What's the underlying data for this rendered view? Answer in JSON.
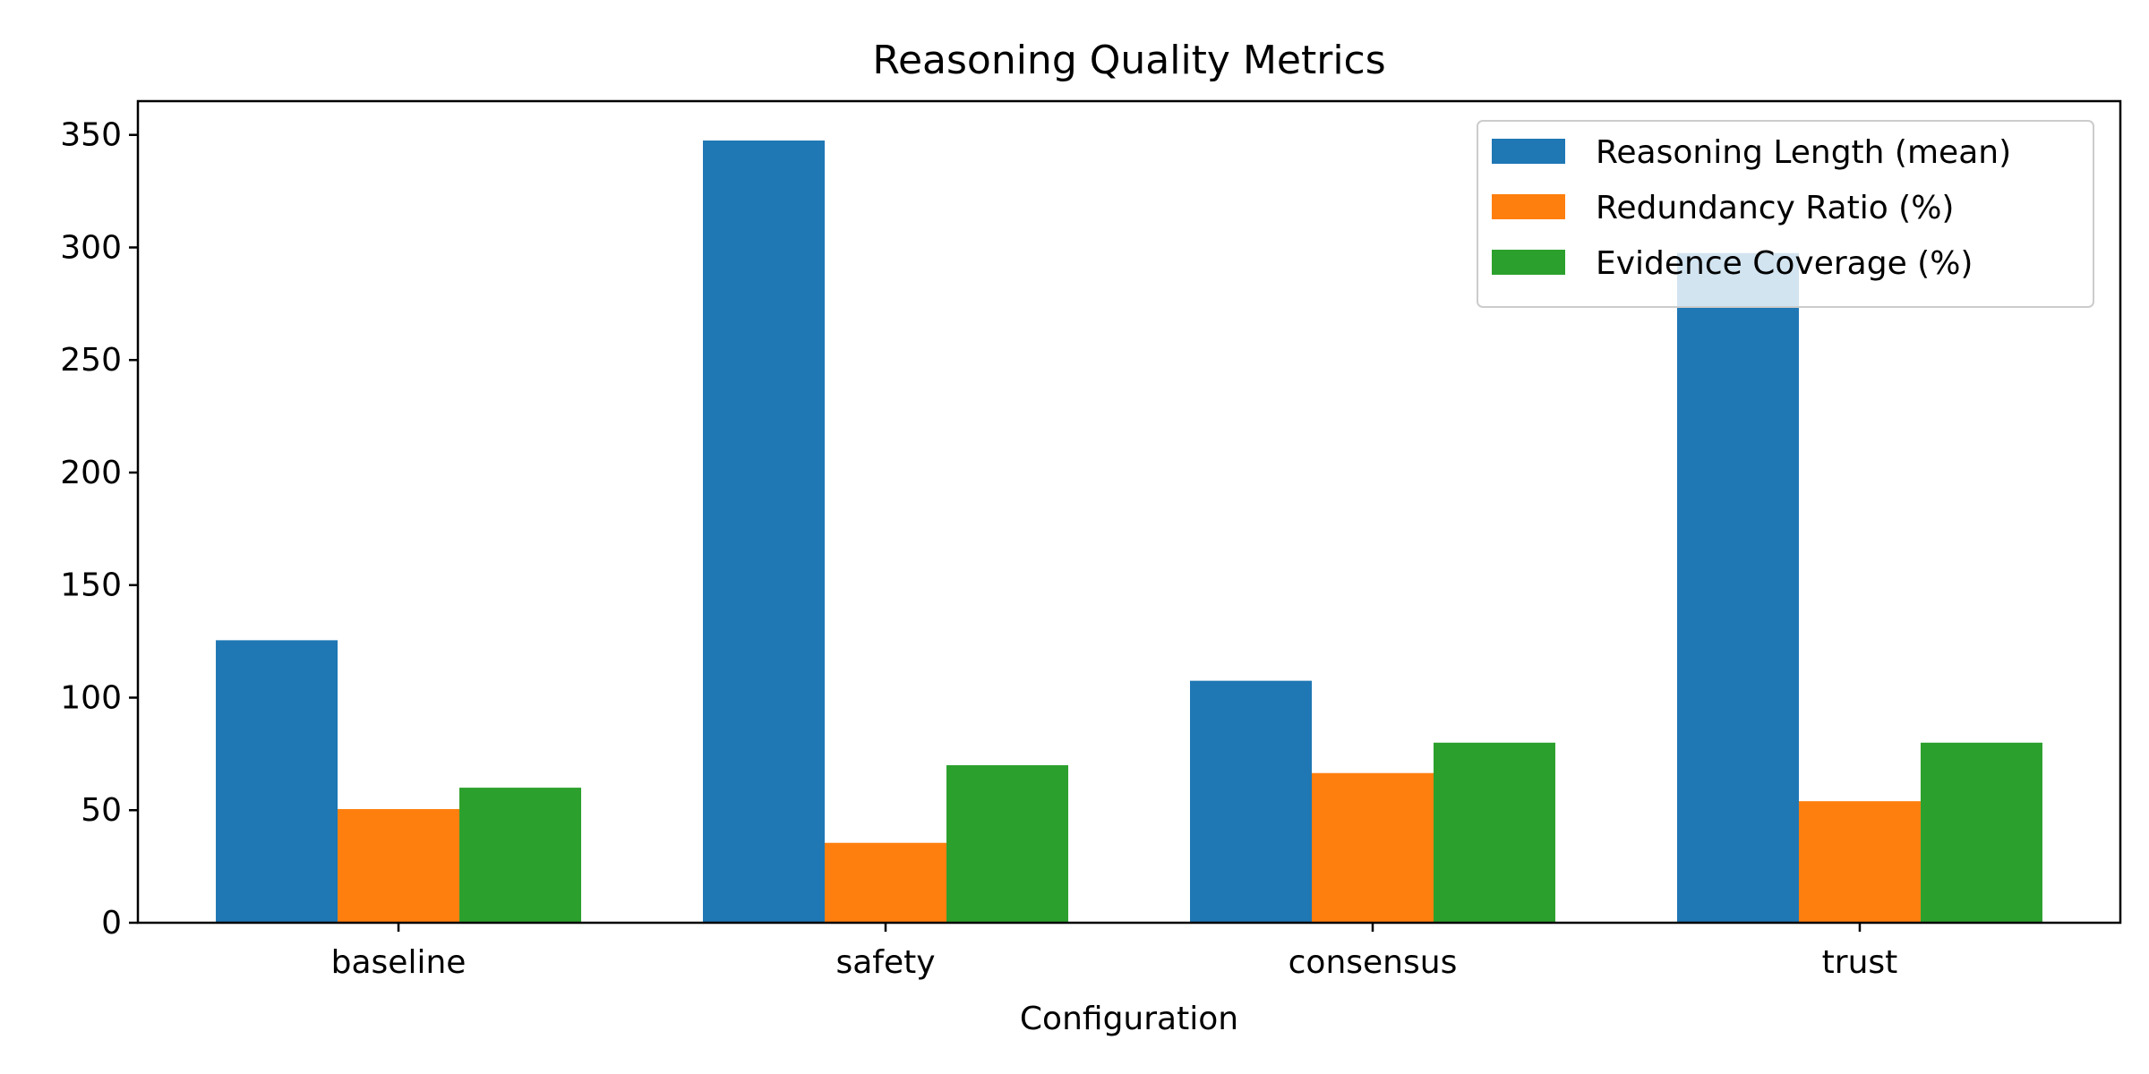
{
  "chart_data": {
    "type": "bar",
    "title": "Reasoning Quality Metrics",
    "xlabel": "Configuration",
    "ylabel": "",
    "categories": [
      "baseline",
      "safety",
      "consensus",
      "trust"
    ],
    "series": [
      {
        "name": "Reasoning Length (mean)",
        "color": "#1f77b4",
        "values": [
          125.5,
          347.5,
          107.5,
          297.5
        ]
      },
      {
        "name": "Redundancy Ratio (%)",
        "color": "#ff7f0e",
        "values": [
          50.5,
          35.5,
          66.5,
          54.0
        ]
      },
      {
        "name": "Evidence Coverage (%)",
        "color": "#2ca02c",
        "values": [
          60.0,
          70.0,
          80.0,
          80.0
        ]
      }
    ],
    "ylim": [
      0,
      365
    ],
    "yticks": [
      0,
      50,
      100,
      150,
      200,
      250,
      300,
      350
    ],
    "grid": false,
    "legend_position": "top-right"
  }
}
